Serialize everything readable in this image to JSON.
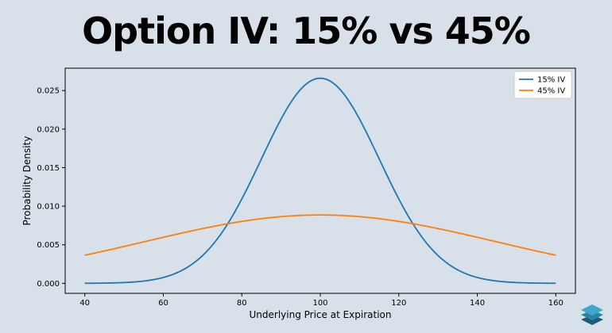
{
  "chart_data": {
    "type": "line",
    "title": "Option IV: 15% vs 45%",
    "xlabel": "Underlying Price at Expiration",
    "ylabel": "Probability Density",
    "xlim": [
      35,
      165
    ],
    "ylim": [
      -0.0013,
      0.0279
    ],
    "xticks": [
      40,
      60,
      80,
      100,
      120,
      140,
      160
    ],
    "yticks": [
      0.0,
      0.005,
      0.01,
      0.015,
      0.02,
      0.025
    ],
    "ytick_labels": [
      "0.000",
      "0.005",
      "0.010",
      "0.015",
      "0.020",
      "0.025"
    ],
    "grid": false,
    "legend_position": "top-right",
    "distribution": "normal",
    "mean": 100,
    "x_range": [
      40,
      160
    ],
    "series": [
      {
        "name": "15% IV",
        "std": 15,
        "color": "#1f77b4"
      },
      {
        "name": "45% IV",
        "std": 45,
        "color": "#ff7f0e"
      }
    ]
  },
  "logo": {
    "icon": "layered-stack-icon",
    "colors": [
      "#1c5c7a",
      "#3fa7c9"
    ]
  }
}
